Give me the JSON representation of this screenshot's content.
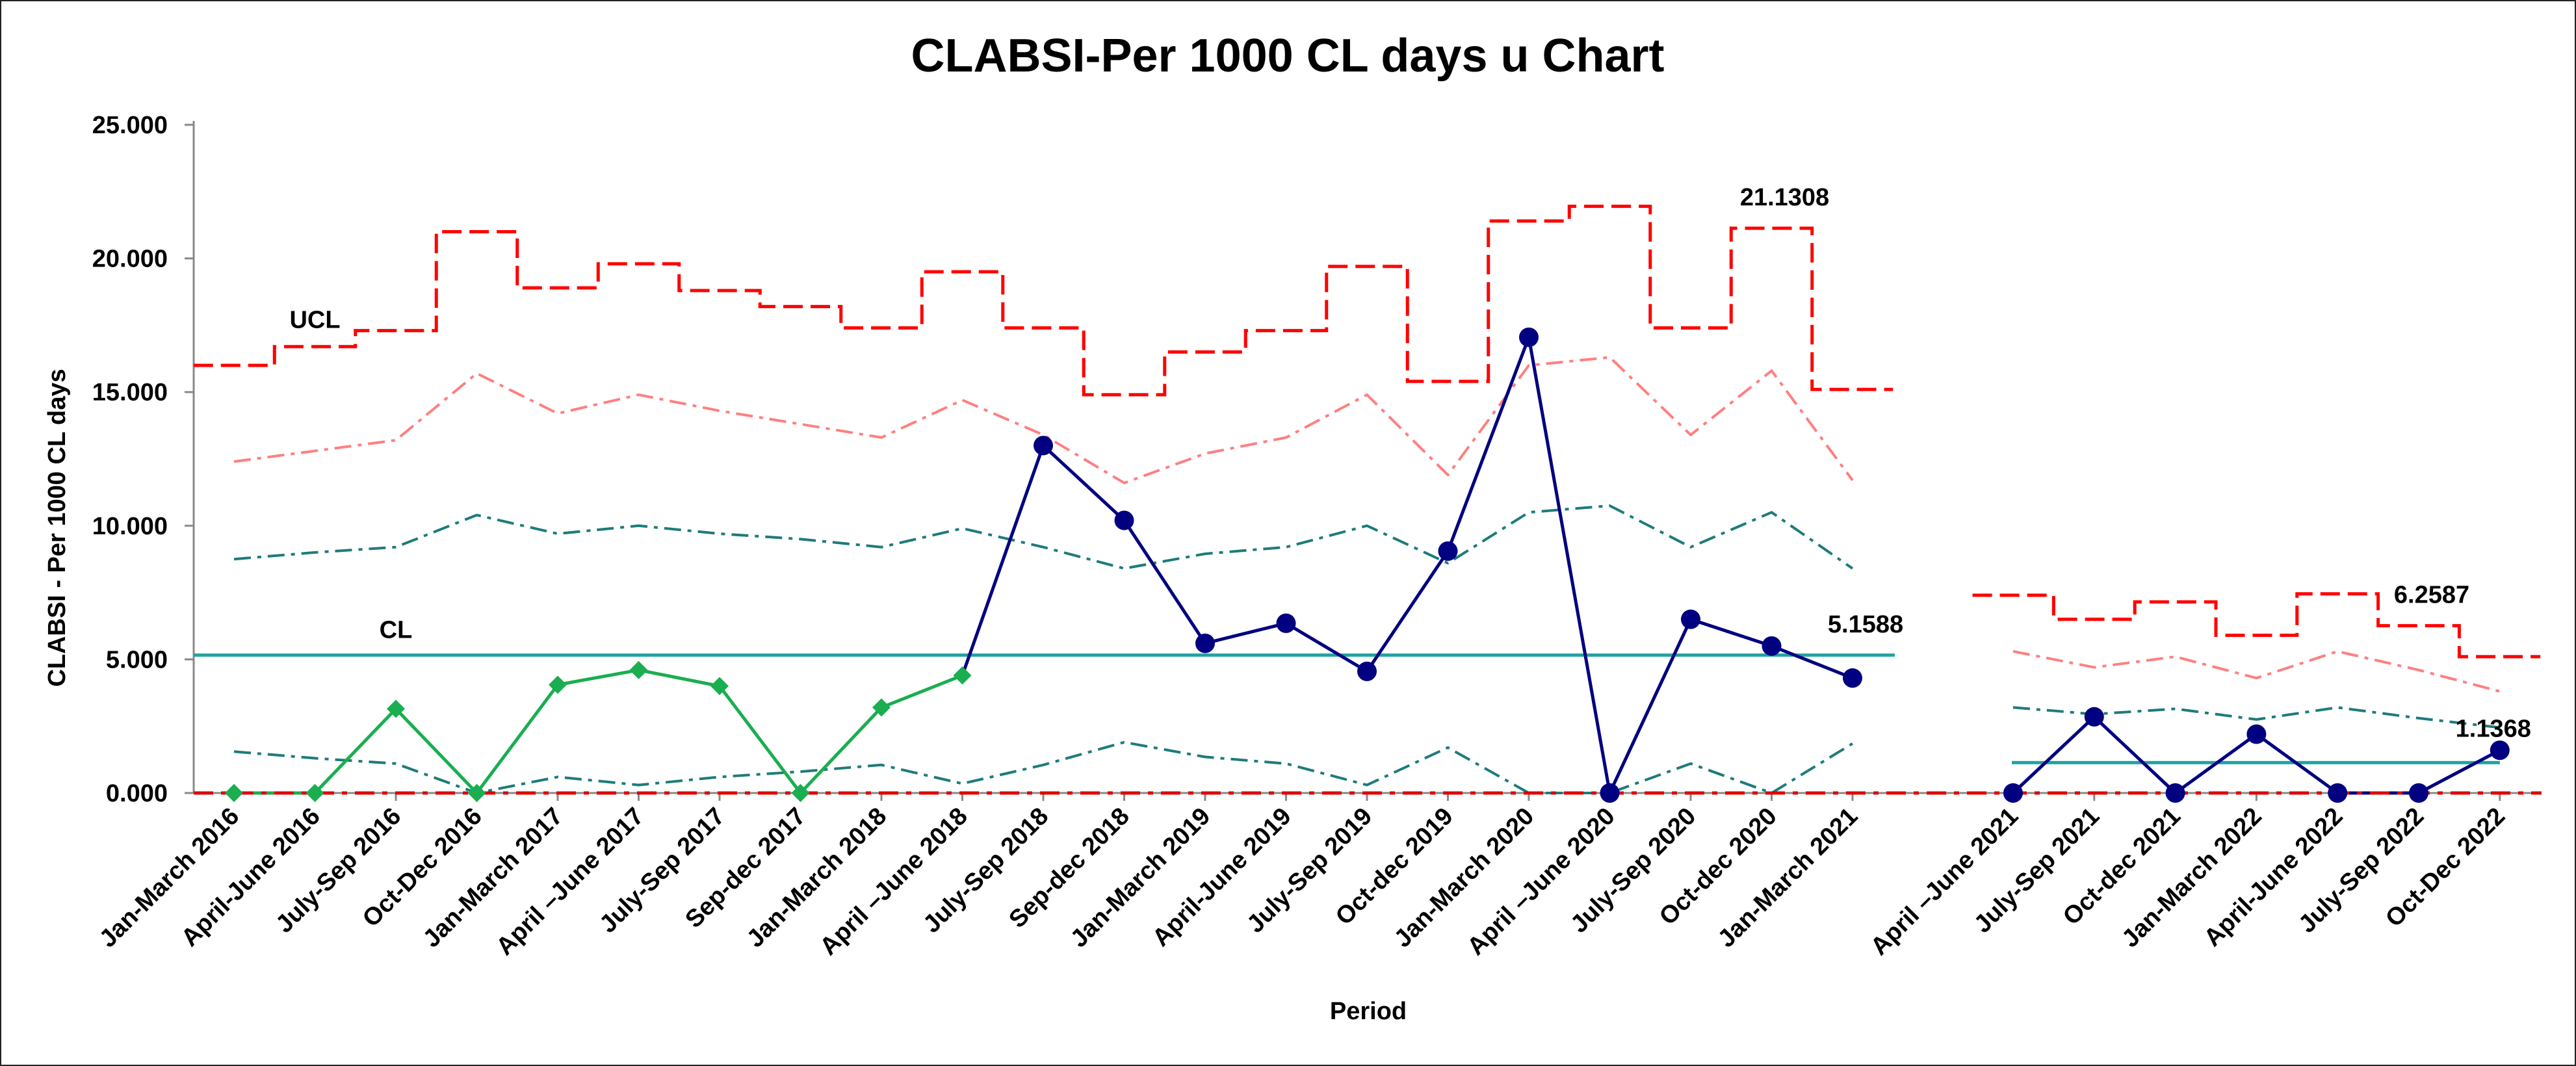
{
  "chart_data": {
    "type": "line",
    "title": "CLABSI-Per 1000 CL days u Chart",
    "xlabel": "Period",
    "ylabel": "CLABSI - Per 1000 CL days",
    "ylim": [
      0,
      25
    ],
    "yticks": [
      "0.000",
      "5.000",
      "10.000",
      "15.000",
      "20.000",
      "25.000"
    ],
    "grid": false,
    "segments": [
      {
        "categories": [
          "Jan-March 2016",
          "April-June 2016",
          "July-Sep 2016",
          "Oct-Dec 2016",
          "Jan-March 2017",
          "April –June 2017",
          "July-Sep 2017",
          "Sep-dec 2017",
          "Jan-March 2018",
          "April –June 2018",
          "July-Sep 2018",
          "Sep-dec 2018",
          "Jan-March 2019",
          "April-June 2019",
          "July-Sep 2019",
          "Oct-dec 2019",
          "Jan-March 2020",
          "April –June 2020",
          "July-Sep 2020",
          "Oct-dec 2020",
          "Jan-March 2021"
        ],
        "series": [
          {
            "values": [
              0,
              0,
              3.15,
              0,
              4.05,
              4.6,
              4.0,
              0,
              3.2,
              4.4,
              null,
              null,
              null,
              null,
              null,
              null,
              null,
              null,
              null,
              null,
              null
            ]
          },
          {
            "values": [
              null,
              null,
              null,
              null,
              null,
              null,
              null,
              null,
              null,
              4.4,
              13.0,
              10.2,
              5.6,
              6.35,
              4.55,
              9.05,
              17.05,
              0,
              6.5,
              5.5,
              4.3
            ]
          },
          {
            "values": [
              16.0,
              16.7,
              17.3,
              21.0,
              18.9,
              19.8,
              18.8,
              18.2,
              17.4,
              19.5,
              17.4,
              14.9,
              16.5,
              17.3,
              19.7,
              15.4,
              21.4,
              21.95,
              17.4,
              21.1308,
              15.1
            ]
          },
          {
            "values": [
              12.4,
              12.8,
              13.2,
              15.7,
              14.2,
              14.9,
              14.3,
              13.8,
              13.3,
              14.7,
              13.4,
              11.6,
              12.7,
              13.3,
              14.9,
              11.9,
              16.0,
              16.3,
              13.4,
              15.8,
              11.7
            ]
          },
          {
            "values": [
              8.75,
              9.0,
              9.2,
              10.4,
              9.7,
              10.0,
              9.7,
              9.5,
              9.2,
              9.9,
              9.2,
              8.4,
              8.95,
              9.2,
              10.0,
              8.6,
              10.5,
              10.75,
              9.2,
              10.5,
              8.4
            ]
          },
          {
            "values": [
              5.1588,
              5.1588,
              5.1588,
              5.1588,
              5.1588,
              5.1588,
              5.1588,
              5.1588,
              5.1588,
              5.1588,
              5.1588,
              5.1588,
              5.1588,
              5.1588,
              5.1588,
              5.1588,
              5.1588,
              5.1588,
              5.1588,
              5.1588,
              5.1588
            ]
          },
          {
            "values": [
              1.55,
              1.3,
              1.1,
              0,
              0.6,
              0.3,
              0.6,
              0.8,
              1.05,
              0.35,
              1.05,
              1.9,
              1.35,
              1.1,
              0.3,
              1.7,
              0,
              0,
              1.1,
              0,
              1.85
            ]
          },
          {
            "values": [
              0,
              0,
              0,
              0,
              0,
              0,
              0,
              0,
              0,
              0,
              0,
              0,
              0,
              0,
              0,
              0,
              0,
              0,
              0,
              0,
              0
            ]
          }
        ],
        "labels": [
          {
            "text": "UCL",
            "x": "April-June 2016",
            "y": 17.4
          },
          {
            "text": "CL",
            "x": "July-Sep 2016",
            "y": 5.8
          },
          {
            "text": "21.1308",
            "x": "Oct-dec 2020",
            "y": 21.1308
          },
          {
            "text": "5.1588",
            "x": "Jan-March 2021",
            "y": 5.1588
          }
        ]
      },
      {
        "categories": [
          "April –June 2021",
          "July-Sep 2021",
          "Oct-dec 2021",
          "Jan-March 2022",
          "April-June 2022",
          "July-Sep 2022",
          "Oct-Dec 2022"
        ],
        "series": [
          {
            "values": [
              0,
              2.85,
              0,
              2.2,
              0,
              0,
              1.6
            ]
          },
          {
            "values": [
              7.4,
              6.5,
              7.15,
              5.9,
              7.45,
              6.2587,
              5.1
            ]
          },
          {
            "values": [
              5.3,
              4.7,
              5.1,
              4.3,
              5.3,
              4.6,
              3.8
            ]
          },
          {
            "values": [
              3.2,
              2.95,
              3.15,
              2.75,
              3.2,
              2.8,
              2.45
            ]
          },
          {
            "values": [
              1.1368,
              1.1368,
              1.1368,
              1.1368,
              1.1368,
              1.1368,
              1.1368
            ]
          },
          {
            "values": [
              0,
              0,
              0,
              0,
              0,
              0,
              0
            ]
          }
        ],
        "labels": [
          {
            "text": "6.2587",
            "x": "July-Sep 2022",
            "y": 6.2587
          },
          {
            "text": "1.1368",
            "x": "Oct-Dec 2022",
            "y": 1.1368
          }
        ]
      }
    ],
    "colors": {
      "data_early": "#1AAE50",
      "data_late": "#000080",
      "ucl": "#FF0000",
      "sigma2": "#FF7F7F",
      "sigma1": "#1E7B7B",
      "cl": "#1FA2A2",
      "lcl": "#E00000"
    }
  }
}
